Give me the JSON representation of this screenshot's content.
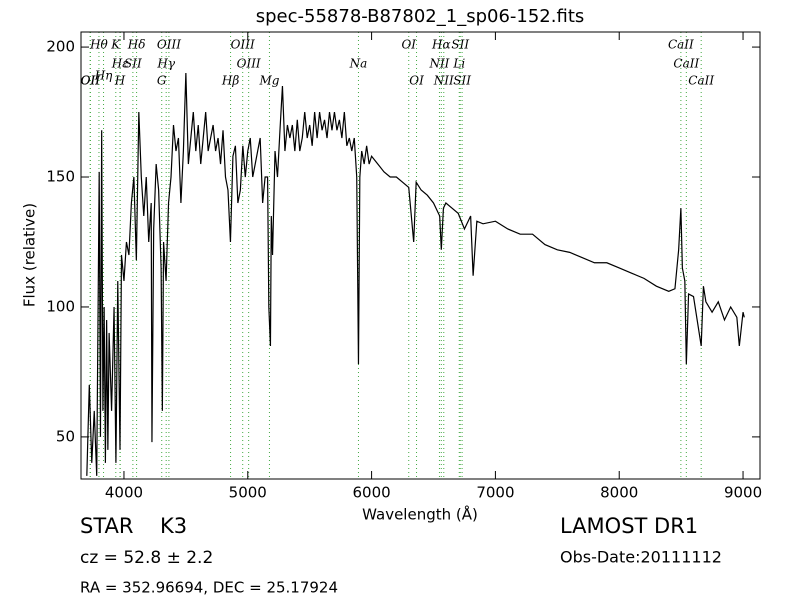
{
  "chart_data": {
    "type": "line",
    "title": "spec-55878-B87802_1_sp06-152.fits",
    "x_label": "Wavelength (Å)",
    "y_label": "Flux (relative)",
    "xlim": [
      3653,
      9137
    ],
    "ylim": [
      33.8,
      205.8
    ],
    "xticks": [
      4000,
      5000,
      6000,
      7000,
      8000,
      9000
    ],
    "yticks": [
      50,
      100,
      150,
      200
    ],
    "grid": false,
    "color": "#000000",
    "annotation_color": "#44aa44",
    "x": [
      3700,
      3720,
      3740,
      3760,
      3780,
      3800,
      3810,
      3820,
      3830,
      3840,
      3850,
      3860,
      3870,
      3880,
      3900,
      3920,
      3935,
      3950,
      3968,
      3980,
      4000,
      4020,
      4040,
      4060,
      4080,
      4100,
      4120,
      4140,
      4160,
      4180,
      4200,
      4220,
      4226,
      4240,
      4260,
      4280,
      4300,
      4310,
      4320,
      4340,
      4360,
      4380,
      4400,
      4420,
      4440,
      4460,
      4480,
      4500,
      4520,
      4540,
      4560,
      4580,
      4600,
      4620,
      4640,
      4660,
      4680,
      4700,
      4720,
      4740,
      4760,
      4780,
      4800,
      4820,
      4840,
      4860,
      4880,
      4900,
      4920,
      4940,
      4960,
      4980,
      5000,
      5020,
      5040,
      5060,
      5080,
      5100,
      5120,
      5140,
      5160,
      5170,
      5183,
      5190,
      5200,
      5220,
      5240,
      5260,
      5280,
      5300,
      5320,
      5340,
      5360,
      5380,
      5400,
      5420,
      5440,
      5460,
      5480,
      5500,
      5520,
      5540,
      5560,
      5580,
      5600,
      5620,
      5640,
      5660,
      5680,
      5700,
      5720,
      5740,
      5760,
      5780,
      5800,
      5820,
      5840,
      5860,
      5880,
      5894,
      5905,
      5920,
      5940,
      5960,
      5980,
      6000,
      6050,
      6100,
      6150,
      6200,
      6250,
      6300,
      6340,
      6360,
      6400,
      6450,
      6500,
      6550,
      6563,
      6580,
      6600,
      6650,
      6700,
      6750,
      6800,
      6820,
      6850,
      6900,
      7000,
      7100,
      7200,
      7300,
      7400,
      7500,
      7600,
      7700,
      7800,
      7900,
      8000,
      8100,
      8200,
      8300,
      8400,
      8450,
      8480,
      8498,
      8510,
      8530,
      8542,
      8560,
      8600,
      8662,
      8680,
      8700,
      8750,
      8800,
      8850,
      8900,
      8950,
      8970,
      9000,
      9010
    ],
    "values": [
      35,
      70,
      40,
      60,
      35,
      152,
      50,
      168,
      60,
      100,
      40,
      95,
      45,
      90,
      60,
      100,
      40,
      110,
      45,
      120,
      110,
      125,
      120,
      140,
      150,
      118,
      175,
      150,
      135,
      150,
      125,
      140,
      48,
      130,
      155,
      145,
      115,
      60,
      125,
      110,
      140,
      150,
      170,
      160,
      165,
      140,
      160,
      190,
      155,
      165,
      175,
      160,
      170,
      155,
      165,
      175,
      160,
      165,
      170,
      160,
      165,
      155,
      168,
      150,
      145,
      125,
      158,
      162,
      140,
      145,
      162,
      150,
      160,
      165,
      150,
      155,
      160,
      165,
      140,
      150,
      150,
      100,
      85,
      135,
      120,
      160,
      150,
      168,
      185,
      160,
      170,
      165,
      170,
      160,
      172,
      160,
      165,
      175,
      165,
      170,
      162,
      175,
      165,
      175,
      168,
      172,
      165,
      175,
      168,
      175,
      168,
      172,
      165,
      175,
      162,
      165,
      160,
      165,
      150,
      78,
      150,
      160,
      155,
      162,
      155,
      158,
      155,
      152,
      150,
      150,
      148,
      146,
      125,
      148,
      145,
      143,
      140,
      135,
      122,
      138,
      140,
      138,
      136,
      130,
      135,
      112,
      133,
      132,
      133,
      130,
      128,
      128,
      124,
      122,
      121,
      119,
      117,
      117,
      115,
      113,
      111,
      108,
      106,
      107,
      122,
      138,
      115,
      110,
      78,
      105,
      104,
      85,
      108,
      102,
      98,
      102,
      95,
      100,
      96,
      85,
      98,
      96
    ],
    "annotations": [
      {
        "x": 3727,
        "label": "OII"
      },
      {
        "x": 3729,
        "label": "OII"
      },
      {
        "x": 3798,
        "label": "Hθ"
      },
      {
        "x": 3835,
        "label": "Hη"
      },
      {
        "x": 3934,
        "label": "K"
      },
      {
        "x": 3970,
        "label": "Hε"
      },
      {
        "x": 3968,
        "label": "H"
      },
      {
        "x": 4072,
        "label": "SII"
      },
      {
        "x": 4102,
        "label": "Hδ"
      },
      {
        "x": 4363,
        "label": "OIII"
      },
      {
        "x": 4341,
        "label": "Hγ"
      },
      {
        "x": 4305,
        "label": "G"
      },
      {
        "x": 4959,
        "label": "OIII"
      },
      {
        "x": 5007,
        "label": "OIII"
      },
      {
        "x": 4861,
        "label": "Hβ"
      },
      {
        "x": 5175,
        "label": "Mg"
      },
      {
        "x": 5894,
        "label": "Na"
      },
      {
        "x": 6300,
        "label": "OI"
      },
      {
        "x": 6363,
        "label": "OI"
      },
      {
        "x": 6563,
        "label": "Hα"
      },
      {
        "x": 6548,
        "label": "NII"
      },
      {
        "x": 6583,
        "label": "NII"
      },
      {
        "x": 6716,
        "label": "SII"
      },
      {
        "x": 6708,
        "label": "Li"
      },
      {
        "x": 6731,
        "label": "SII"
      },
      {
        "x": 8498,
        "label": "CaII"
      },
      {
        "x": 8542,
        "label": "CaII"
      },
      {
        "x": 8662,
        "label": "CaII"
      }
    ]
  },
  "footer": {
    "class": "STAR",
    "subclass": "K3",
    "redshift": "cz = 52.8 ± 2.2",
    "coords": "RA = 352.96694, DEC = 25.17924",
    "survey": "LAMOST DR1",
    "obs_date": "Obs-Date:20111112"
  }
}
